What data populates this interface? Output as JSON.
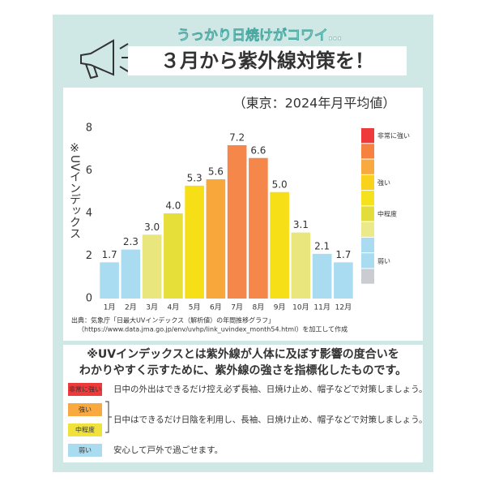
{
  "header": {
    "kicker": "うっかり日焼けがコワイ…",
    "title": "３月から紫外線対策を！"
  },
  "chart_data": {
    "type": "bar",
    "subtitle": "（東京：2024年月平均値）",
    "y_label": "※UVインデックス",
    "categories": [
      "1月",
      "2月",
      "3月",
      "4月",
      "5月",
      "6月",
      "7月",
      "8月",
      "9月",
      "10月",
      "11月",
      "12月"
    ],
    "values": [
      1.7,
      2.3,
      3.0,
      4.0,
      5.3,
      5.6,
      7.2,
      6.6,
      5.0,
      3.1,
      2.1,
      1.7
    ],
    "value_labels": [
      "1.7",
      "2.3",
      "3.0",
      "4.0",
      "5.3",
      "5.6",
      "7.2",
      "6.6",
      "5.0",
      "3.1",
      "2.1",
      "1.7"
    ],
    "colors": [
      "#a9dcf0",
      "#a9dcf0",
      "#e8e67c",
      "#e6df3a",
      "#f7df17",
      "#f8a73a",
      "#f5874a",
      "#f5874a",
      "#f7df17",
      "#e8e67c",
      "#a9dcf0",
      "#a9dcf0"
    ],
    "ylim": [
      0,
      8
    ],
    "yticks": [
      0,
      2,
      4,
      6,
      8
    ],
    "scale_colors": [
      "#ee3a3a",
      "#f5823f",
      "#f8a93f",
      "#f8d21b",
      "#f6e21c",
      "#e2dd3a",
      "#ebe98a",
      "#a9dcf0",
      "#a9dcf0",
      "#c9cdd1",
      "#ffffff"
    ],
    "scale_labels": [
      "非常に強い",
      "強い",
      "中程度",
      "弱い"
    ],
    "source": [
      "出典：気象庁「日最大UVインデックス（解析値）の年間推移グラフ」",
      "（https://www.data.jma.go.jp/env/uvhp/link_uvindex_month54.html）を加工して作成"
    ]
  },
  "note": [
    "※UVインデックスとは紫外線が人体に及ぼす影響の度合いを",
    "わかりやすく示すために、紫外線の強さを指標化したものです。"
  ],
  "guide": [
    {
      "badges": [
        {
          "label": "非常に強い",
          "color": "#ee3a3a"
        }
      ],
      "text": "日中の外出はできるだけ控え必ず長袖、日焼け止め、帽子などで対策しましょう。"
    },
    {
      "badges": [
        {
          "label": "強い",
          "color": "#f8a93f"
        },
        {
          "label": "中程度",
          "color": "#f0e23a"
        }
      ],
      "text": "日中はできるだけ日陰を利用し、長袖、日焼け止め、帽子などで対策しましょう。"
    },
    {
      "badges": [
        {
          "label": "弱い",
          "color": "#a9dcf0"
        }
      ],
      "text": "安心して戸外で過ごせます。"
    }
  ]
}
